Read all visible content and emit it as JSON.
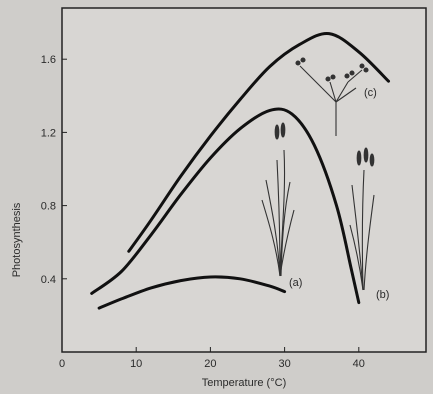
{
  "chart_data": {
    "type": "line",
    "xlabel": "Temperature (°C)",
    "ylabel": "Photosynthesis",
    "xlim": [
      0,
      50
    ],
    "ylim": [
      0,
      2.0
    ],
    "x_ticks": [
      "0",
      "10",
      "20",
      "30",
      "40"
    ],
    "y_ticks": [
      "0.4",
      "0.8",
      "1.2",
      "1.6"
    ],
    "grid": false,
    "series": [
      {
        "name": "(a)",
        "x": [
          5,
          8,
          12,
          16,
          20,
          24,
          28,
          30
        ],
        "y": [
          0.24,
          0.29,
          0.35,
          0.39,
          0.41,
          0.4,
          0.36,
          0.33
        ]
      },
      {
        "name": "(b)",
        "x": [
          4,
          8,
          12,
          16,
          20,
          24,
          28,
          31,
          34,
          37,
          39,
          40
        ],
        "y": [
          0.32,
          0.44,
          0.64,
          0.86,
          1.06,
          1.22,
          1.32,
          1.3,
          1.13,
          0.8,
          0.45,
          0.27
        ]
      },
      {
        "name": "(c)",
        "x": [
          9,
          12,
          16,
          20,
          24,
          28,
          32,
          36,
          40,
          44
        ],
        "y": [
          0.55,
          0.72,
          0.96,
          1.18,
          1.38,
          1.56,
          1.68,
          1.74,
          1.64,
          1.48
        ]
      }
    ]
  }
}
